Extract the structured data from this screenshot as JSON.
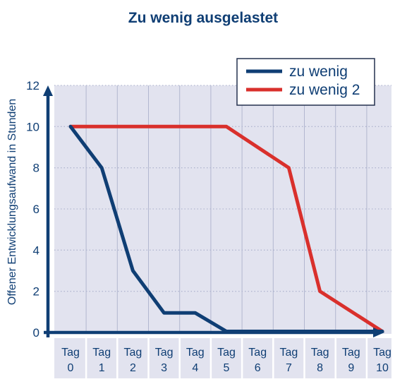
{
  "chart_data": {
    "type": "line",
    "title": "Zu wenig ausgelastet",
    "xlabel": "",
    "ylabel": "Offener Entwicklungsaufwand in Stunden",
    "categories": [
      "Tag 0",
      "Tag 1",
      "Tag 2",
      "Tag 3",
      "Tag 4",
      "Tag 5",
      "Tag 6",
      "Tag 7",
      "Tag 8",
      "Tag 9",
      "Tag 10"
    ],
    "x_ticks": [
      {
        "top": "Tag",
        "bottom": "0"
      },
      {
        "top": "Tag",
        "bottom": "1"
      },
      {
        "top": "Tag",
        "bottom": "2"
      },
      {
        "top": "Tag",
        "bottom": "3"
      },
      {
        "top": "Tag",
        "bottom": "4"
      },
      {
        "top": "Tag",
        "bottom": "5"
      },
      {
        "top": "Tag",
        "bottom": "6"
      },
      {
        "top": "Tag",
        "bottom": "7"
      },
      {
        "top": "Tag",
        "bottom": "8"
      },
      {
        "top": "Tag",
        "bottom": "9"
      },
      {
        "top": "Tag",
        "bottom": "10"
      }
    ],
    "y_ticks": [
      "0",
      "2",
      "4",
      "6",
      "8",
      "10",
      "12"
    ],
    "ylim": [
      0,
      12
    ],
    "grid": true,
    "legend_position": "top-right",
    "series": [
      {
        "name": "zu wenig",
        "color": "#0f3e74",
        "points": [
          [
            0,
            10
          ],
          [
            1,
            8
          ],
          [
            2,
            3
          ],
          [
            3,
            0.95
          ],
          [
            4,
            0.95
          ],
          [
            5,
            0.05
          ],
          [
            10,
            0.05
          ]
        ]
      },
      {
        "name": "zu wenig 2",
        "color": "#d9302c",
        "points": [
          [
            0,
            10
          ],
          [
            5,
            10
          ],
          [
            7,
            8
          ],
          [
            8,
            2
          ],
          [
            10,
            0.05
          ]
        ]
      }
    ]
  },
  "colors": {
    "title": "#0f3e74",
    "axis": "#0f3e74",
    "plot_background": "#e2e3ef",
    "grid": "#b2b7d0",
    "tick_text": "#0f3e74",
    "legend_border": "#24314f"
  }
}
